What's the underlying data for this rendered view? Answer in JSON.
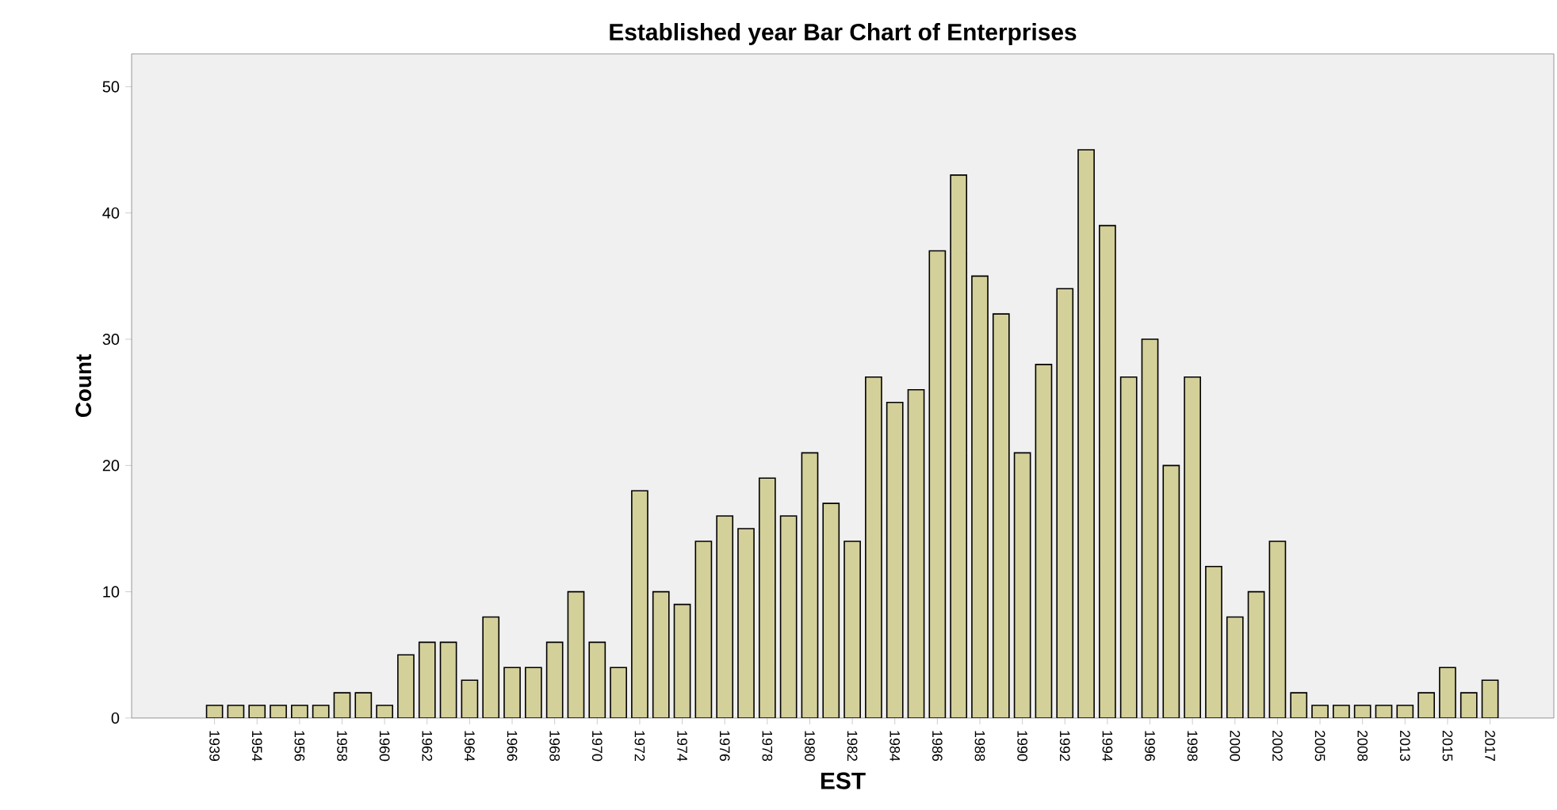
{
  "chart_data": {
    "type": "bar",
    "title": "Established year Bar Chart of Enterprises",
    "xlabel": "EST",
    "ylabel": "Count",
    "categories": [
      "1939",
      null,
      "1954",
      null,
      "1956",
      null,
      "1958",
      null,
      "1960",
      null,
      "1962",
      null,
      "1964",
      null,
      "1966",
      null,
      "1968",
      null,
      "1970",
      null,
      "1972",
      null,
      "1974",
      null,
      "1976",
      null,
      "1978",
      null,
      "1980",
      null,
      "1982",
      null,
      "1984",
      null,
      "1986",
      null,
      "1988",
      null,
      "1990",
      null,
      "1992",
      null,
      "1994",
      null,
      "1996",
      null,
      "1998",
      null,
      "2000",
      null,
      "2002",
      null,
      "2005",
      null,
      "2008",
      null,
      "2013",
      null,
      "2015",
      null,
      "2017"
    ],
    "values": [
      1,
      1,
      1,
      1,
      1,
      1,
      2,
      2,
      1,
      5,
      6,
      6,
      3,
      8,
      4,
      4,
      6,
      10,
      6,
      4,
      18,
      10,
      9,
      14,
      16,
      15,
      19,
      16,
      21,
      17,
      14,
      27,
      25,
      26,
      37,
      43,
      35,
      32,
      21,
      28,
      34,
      45,
      39,
      27,
      30,
      20,
      27,
      12,
      8,
      10,
      14,
      2,
      1,
      1,
      1,
      1,
      1,
      2,
      4,
      2,
      3
    ],
    "color": "#d4d09a",
    "ylim": [
      0,
      52.6
    ],
    "yticks": [
      0,
      10,
      20,
      30,
      40,
      50
    ]
  }
}
